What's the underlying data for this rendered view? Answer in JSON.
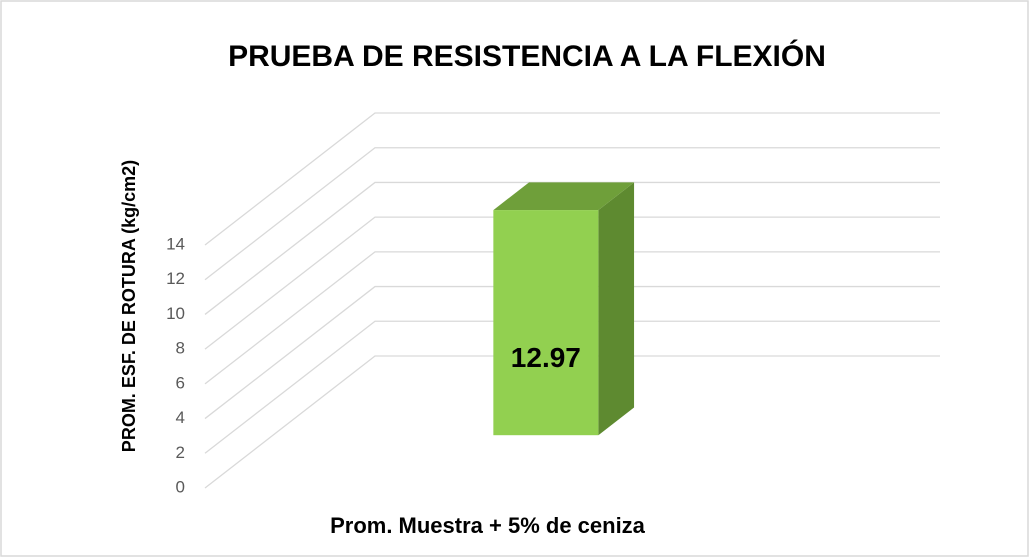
{
  "chart_data": {
    "type": "bar3d",
    "title": "PRUEBA DE RESISTENCIA A LA FLEXIÓN",
    "y_label": "PROM. ESF. DE ROTURA (kg/cm2)",
    "categories": [
      "Prom. Muestra + 5% de ceniza"
    ],
    "values": [
      12.97
    ],
    "color": "#92d050",
    "ylim": [
      0,
      14
    ],
    "yticks": [
      0,
      2,
      4,
      6,
      8,
      10,
      12,
      14
    ],
    "grid": true
  }
}
